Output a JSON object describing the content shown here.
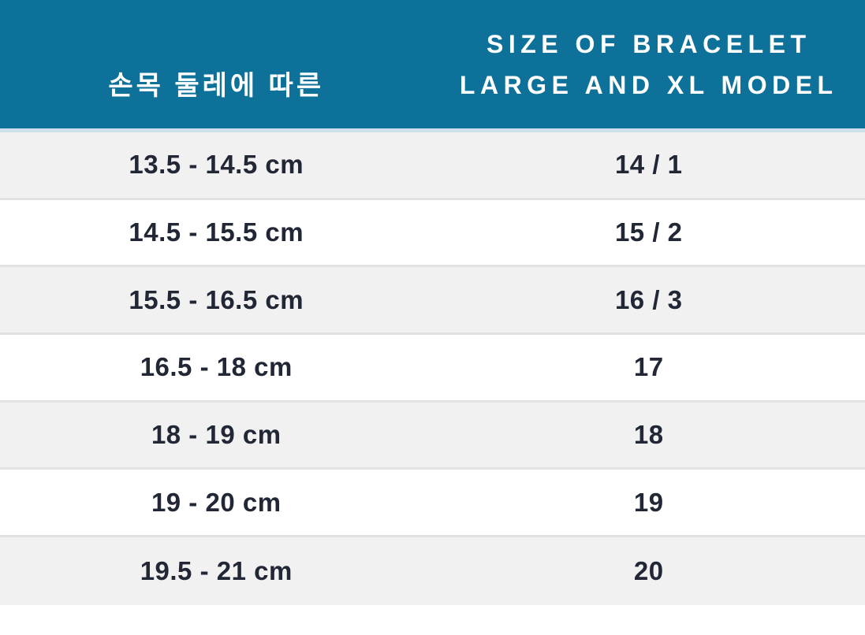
{
  "colors": {
    "header_bg": "#0d7199",
    "header_text": "#ffffff",
    "header_underline": "#cfe0ed",
    "row_bg": "#ffffff",
    "row_alt_bg": "#f1f1f2",
    "row_separator": "#e2e2e5",
    "cell_text": "#212734"
  },
  "table": {
    "header": {
      "wrist_label": "손목 둘레에 따른",
      "size_label_line1": "SIZE OF BRACELET",
      "size_label_line2": "LARGE AND XL MODEL"
    },
    "rows": [
      {
        "wrist": "13.5 - 14.5 cm",
        "size": "14 / 1"
      },
      {
        "wrist": "14.5 - 15.5 cm",
        "size": "15 / 2"
      },
      {
        "wrist": "15.5 - 16.5 cm",
        "size": "16 / 3"
      },
      {
        "wrist": "16.5 - 18 cm",
        "size": "17"
      },
      {
        "wrist": "18 - 19 cm",
        "size": "18"
      },
      {
        "wrist": "19 - 20 cm",
        "size": "19"
      },
      {
        "wrist": "19.5 - 21 cm",
        "size": "20"
      }
    ]
  },
  "chart_data": {
    "type": "table",
    "title": "",
    "columns": [
      "손목 둘레에 따른",
      "SIZE OF BRACELET LARGE AND XL MODEL"
    ],
    "rows": [
      [
        "13.5 - 14.5 cm",
        "14 / 1"
      ],
      [
        "14.5 - 15.5 cm",
        "15 / 2"
      ],
      [
        "15.5 - 16.5 cm",
        "16 / 3"
      ],
      [
        "16.5 - 18 cm",
        "17"
      ],
      [
        "18 - 19 cm",
        "18"
      ],
      [
        "19 - 20 cm",
        "19"
      ],
      [
        "19.5 - 21 cm",
        "20"
      ]
    ],
    "layout_hints": {
      "header_background": "#0d7199",
      "zebra_striping": true,
      "first_row_shaded": true
    }
  }
}
